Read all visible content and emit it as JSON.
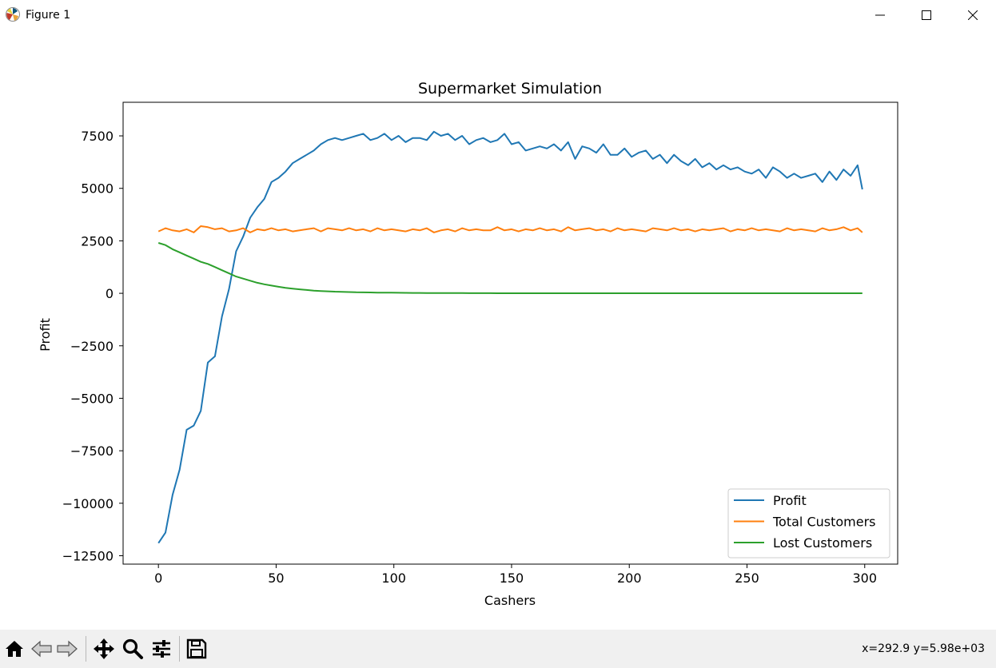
{
  "window": {
    "title": "Figure 1"
  },
  "status": {
    "coords": "x=292.9 y=5.98e+03"
  },
  "toolbar": {
    "buttons": [
      {
        "name": "home-button",
        "icon": "home-icon"
      },
      {
        "name": "back-button",
        "icon": "arrow-left-icon"
      },
      {
        "name": "forward-button",
        "icon": "arrow-right-icon"
      },
      {
        "name": "pan-button",
        "icon": "move-icon"
      },
      {
        "name": "zoom-button",
        "icon": "magnifier-icon"
      },
      {
        "name": "configure-subplots-button",
        "icon": "sliders-icon"
      },
      {
        "name": "save-button",
        "icon": "floppy-disk-icon"
      }
    ]
  },
  "chart_data": {
    "type": "line",
    "title": "Supermarket Simulation",
    "xlabel": "Cashers",
    "ylabel": "Profit",
    "xlim": [
      -15,
      314
    ],
    "ylim": [
      -12900,
      9100
    ],
    "xticks": [
      0,
      50,
      100,
      150,
      200,
      250,
      300
    ],
    "yticks": [
      -12500,
      -10000,
      -7500,
      -5000,
      -2500,
      0,
      2500,
      5000,
      7500
    ],
    "ytick_labels": [
      "−12500",
      "−10000",
      "−7500",
      "−5000",
      "−2500",
      "0",
      "2500",
      "5000",
      "7500"
    ],
    "grid": false,
    "legend": "lower-right",
    "x": [
      0,
      3,
      6,
      9,
      12,
      15,
      18,
      21,
      24,
      27,
      30,
      33,
      36,
      39,
      42,
      45,
      48,
      51,
      54,
      57,
      60,
      63,
      66,
      69,
      72,
      75,
      78,
      81,
      84,
      87,
      90,
      93,
      96,
      99,
      102,
      105,
      108,
      111,
      114,
      117,
      120,
      123,
      126,
      129,
      132,
      135,
      138,
      141,
      144,
      147,
      150,
      153,
      156,
      159,
      162,
      165,
      168,
      171,
      174,
      177,
      180,
      183,
      186,
      189,
      192,
      195,
      198,
      201,
      204,
      207,
      210,
      213,
      216,
      219,
      222,
      225,
      228,
      231,
      234,
      237,
      240,
      243,
      246,
      249,
      252,
      255,
      258,
      261,
      264,
      267,
      270,
      273,
      276,
      279,
      282,
      285,
      288,
      291,
      294,
      297,
      299
    ],
    "series": [
      {
        "name": "Profit",
        "color": "#1f77b4",
        "values": [
          -11900,
          -11400,
          -9600,
          -8400,
          -6500,
          -6300,
          -5600,
          -3300,
          -3000,
          -1100,
          200,
          2000,
          2700,
          3600,
          4100,
          4500,
          5300,
          5500,
          5800,
          6200,
          6400,
          6600,
          6800,
          7100,
          7300,
          7400,
          7300,
          7400,
          7500,
          7600,
          7300,
          7400,
          7600,
          7300,
          7500,
          7200,
          7400,
          7400,
          7300,
          7700,
          7500,
          7600,
          7300,
          7500,
          7100,
          7300,
          7400,
          7200,
          7300,
          7600,
          7100,
          7200,
          6800,
          6900,
          7000,
          6900,
          7100,
          6800,
          7200,
          6400,
          7000,
          6900,
          6700,
          7100,
          6600,
          6600,
          6900,
          6500,
          6700,
          6800,
          6400,
          6600,
          6200,
          6600,
          6300,
          6100,
          6400,
          6000,
          6200,
          5900,
          6100,
          5900,
          6000,
          5800,
          5700,
          5900,
          5500,
          6000,
          5800,
          5500,
          5700,
          5500,
          5600,
          5700,
          5300,
          5800,
          5400,
          5900,
          5600,
          6100,
          4950
        ]
      },
      {
        "name": "Total Customers",
        "color": "#ff7f0e",
        "values": [
          2950,
          3100,
          3000,
          2950,
          3050,
          2900,
          3200,
          3150,
          3050,
          3100,
          2950,
          3000,
          3100,
          2900,
          3050,
          3000,
          3100,
          3000,
          3050,
          2950,
          3000,
          3050,
          3100,
          2950,
          3100,
          3050,
          3000,
          3100,
          3000,
          3050,
          2950,
          3100,
          3000,
          3050,
          3000,
          2950,
          3050,
          3000,
          3100,
          2900,
          3000,
          3050,
          2950,
          3100,
          3000,
          3050,
          3000,
          3000,
          3150,
          3000,
          3050,
          2950,
          3050,
          3000,
          3100,
          3000,
          3050,
          2950,
          3150,
          3000,
          3050,
          3100,
          3000,
          3050,
          2950,
          3100,
          3000,
          3050,
          3000,
          2950,
          3100,
          3050,
          3000,
          3100,
          3000,
          3050,
          2950,
          3050,
          3000,
          3050,
          3100,
          2950,
          3050,
          3000,
          3100,
          3000,
          3050,
          3000,
          2950,
          3100,
          3000,
          3050,
          3000,
          2950,
          3100,
          3000,
          3050,
          3150,
          3000,
          3100,
          2900
        ]
      },
      {
        "name": "Lost Customers",
        "color": "#2ca02c",
        "values": [
          2400,
          2300,
          2100,
          1950,
          1800,
          1650,
          1500,
          1400,
          1250,
          1100,
          950,
          800,
          700,
          600,
          500,
          430,
          370,
          310,
          260,
          220,
          190,
          160,
          130,
          110,
          95,
          80,
          70,
          60,
          50,
          45,
          40,
          35,
          30,
          28,
          25,
          22,
          20,
          18,
          16,
          14,
          12,
          11,
          10,
          9,
          8,
          7,
          6,
          6,
          5,
          5,
          5,
          4,
          4,
          4,
          4,
          3,
          3,
          3,
          3,
          3,
          3,
          3,
          2,
          2,
          2,
          2,
          2,
          2,
          2,
          2,
          2,
          2,
          2,
          2,
          2,
          2,
          2,
          2,
          2,
          2,
          2,
          2,
          2,
          2,
          2,
          2,
          2,
          2,
          2,
          2,
          2,
          2,
          2,
          2,
          2,
          2,
          2,
          2,
          2,
          2,
          2
        ]
      }
    ]
  }
}
